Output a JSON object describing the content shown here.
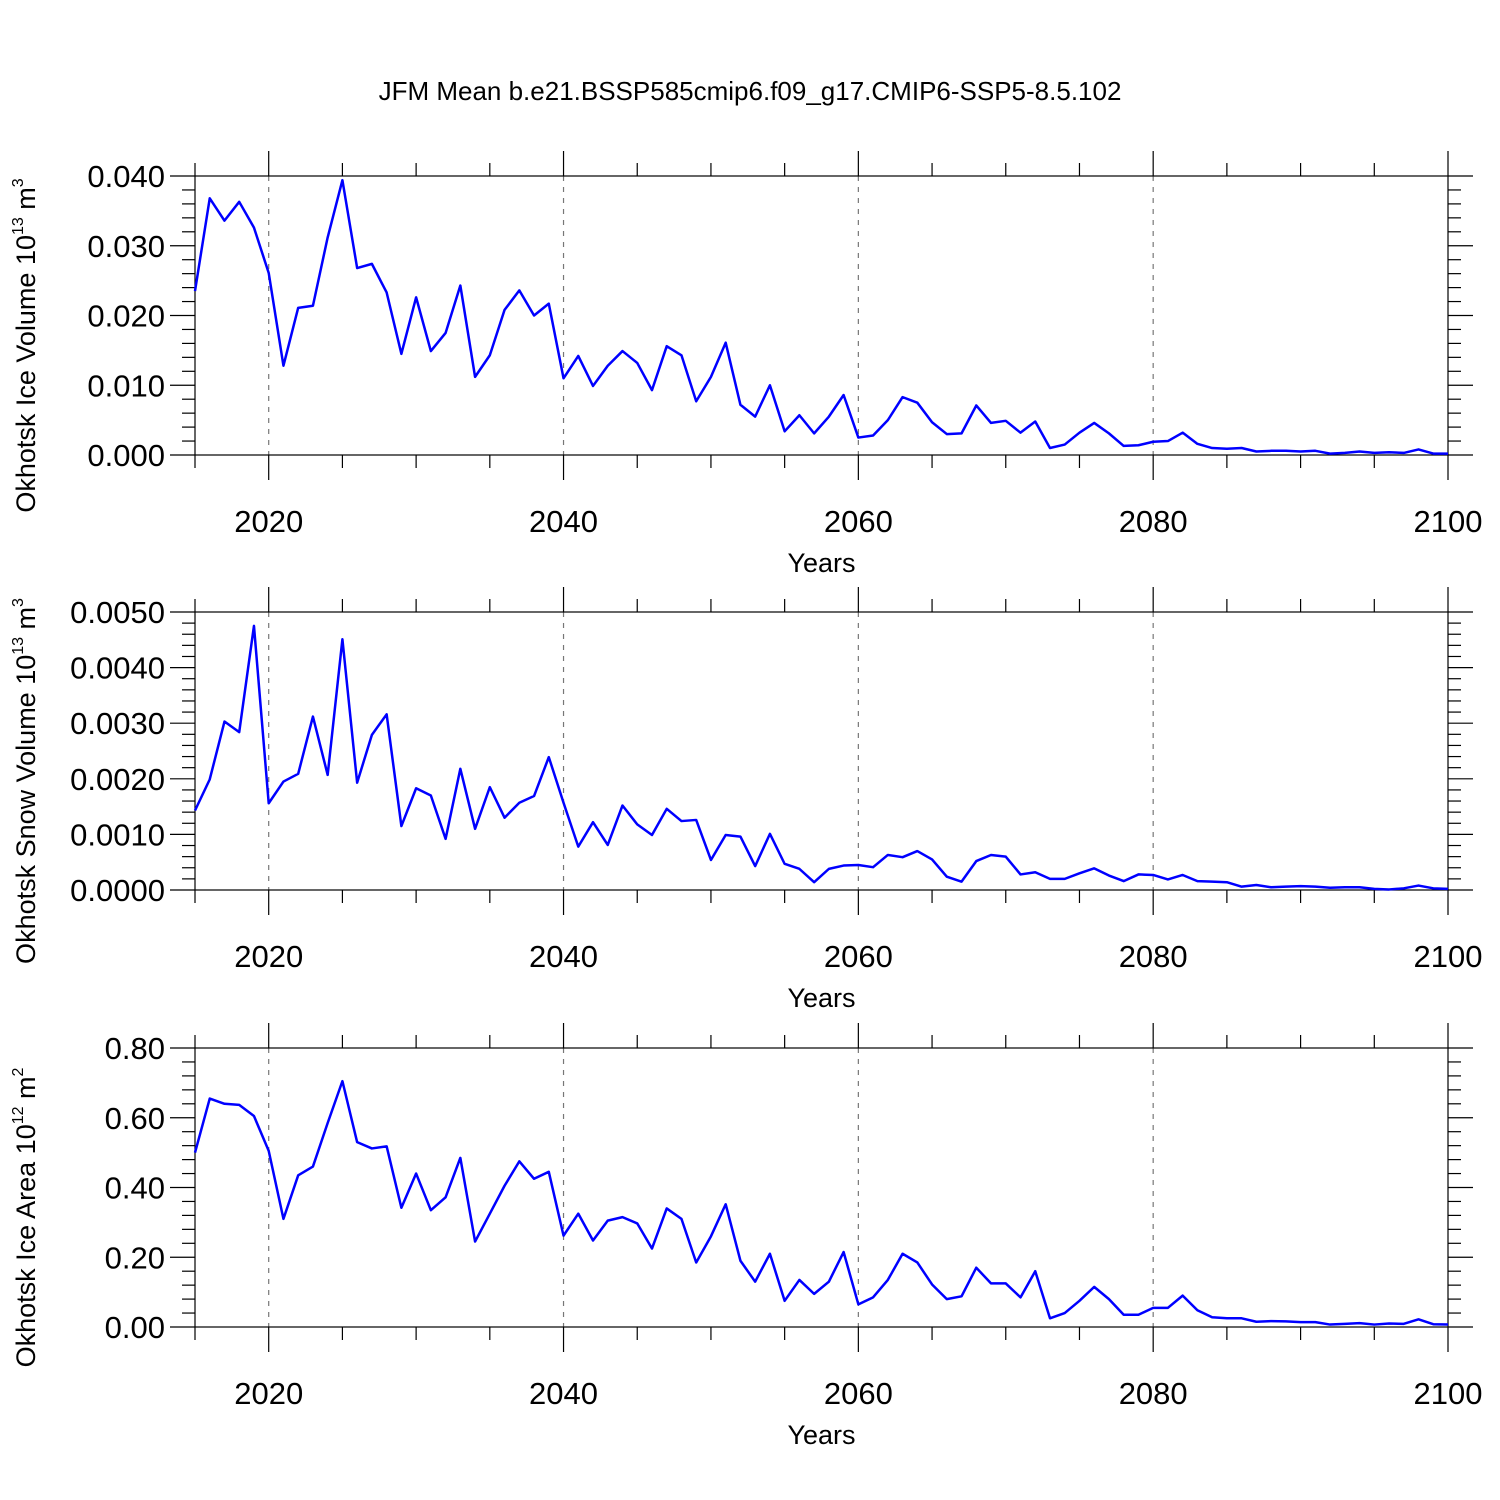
{
  "figure": {
    "title": "JFM Mean b.e21.BSSP585cmip6.f09_g17.CMIP6-SSP5-8.5.102"
  },
  "series_color": "#0000ff",
  "chart_data": [
    {
      "type": "line",
      "ylabel": "Okhotsk Ice Volume 10",
      "ylabel_exp": "13",
      "ylabel_unit": " m",
      "ylabel_unit_exp": "3",
      "xlabel": "Years",
      "xlim": [
        2015,
        2100
      ],
      "ylim": [
        0,
        0.04
      ],
      "x_ticks": [
        2020,
        2040,
        2060,
        2080,
        2100
      ],
      "x_tick_labels": [
        "2020",
        "2040",
        "2060",
        "2080",
        "2100"
      ],
      "y_ticks": [
        0,
        0.01,
        0.02,
        0.03,
        0.04
      ],
      "y_tick_labels": [
        "0.000",
        "0.010",
        "0.020",
        "0.030",
        "0.040"
      ],
      "y_minor_step": 0.002,
      "x_minor_step": 5,
      "grid": "vertical dashed at major x ticks",
      "x_start": 2015,
      "values": [
        0.0235,
        0.0368,
        0.0336,
        0.0363,
        0.0326,
        0.0261,
        0.0128,
        0.0211,
        0.0214,
        0.0312,
        0.0394,
        0.0268,
        0.0274,
        0.0233,
        0.0145,
        0.0226,
        0.0149,
        0.0175,
        0.0243,
        0.0112,
        0.0143,
        0.0208,
        0.0236,
        0.02,
        0.0217,
        0.011,
        0.0142,
        0.0099,
        0.0128,
        0.0149,
        0.0132,
        0.0093,
        0.0156,
        0.0143,
        0.0077,
        0.0112,
        0.0161,
        0.0072,
        0.0055,
        0.01,
        0.0034,
        0.0057,
        0.0031,
        0.0055,
        0.0086,
        0.0025,
        0.0028,
        0.005,
        0.0083,
        0.0075,
        0.0047,
        0.003,
        0.0031,
        0.0071,
        0.0046,
        0.0049,
        0.0032,
        0.0048,
        0.001,
        0.0015,
        0.0032,
        0.0046,
        0.0031,
        0.0013,
        0.0014,
        0.0019,
        0.002,
        0.0032,
        0.0016,
        0.001,
        0.0009,
        0.001,
        0.0005,
        0.0006,
        0.0006,
        0.0005,
        0.0006,
        0.0002,
        0.0003,
        0.0005,
        0.0003,
        0.0004,
        0.0003,
        0.0008,
        0.0002,
        0.0002
      ]
    },
    {
      "type": "line",
      "ylabel": "Okhotsk Snow Volume 10",
      "ylabel_exp": "13",
      "ylabel_unit": " m",
      "ylabel_unit_exp": "3",
      "xlabel": "Years",
      "xlim": [
        2015,
        2100
      ],
      "ylim": [
        0,
        0.005
      ],
      "x_ticks": [
        2020,
        2040,
        2060,
        2080,
        2100
      ],
      "x_tick_labels": [
        "2020",
        "2040",
        "2060",
        "2080",
        "2100"
      ],
      "y_ticks": [
        0,
        0.001,
        0.002,
        0.003,
        0.004,
        0.005
      ],
      "y_tick_labels": [
        "0.0000",
        "0.0010",
        "0.0020",
        "0.0030",
        "0.0040",
        "0.0050"
      ],
      "y_minor_step": 0.0002,
      "x_minor_step": 5,
      "grid": "vertical dashed at major x ticks",
      "x_start": 2015,
      "values": [
        0.00143,
        0.00199,
        0.00303,
        0.00284,
        0.00475,
        0.00156,
        0.00195,
        0.00209,
        0.00312,
        0.00207,
        0.00451,
        0.00193,
        0.00279,
        0.00316,
        0.00115,
        0.00183,
        0.0017,
        0.00092,
        0.00218,
        0.0011,
        0.00185,
        0.0013,
        0.00157,
        0.00169,
        0.00239,
        0.00157,
        0.00078,
        0.00122,
        0.00081,
        0.00152,
        0.00118,
        0.00099,
        0.00146,
        0.00124,
        0.00126,
        0.00054,
        0.00099,
        0.00096,
        0.00043,
        0.00101,
        0.00047,
        0.00038,
        0.00014,
        0.00038,
        0.00044,
        0.00045,
        0.00041,
        0.00063,
        0.00059,
        0.0007,
        0.00055,
        0.00024,
        0.00015,
        0.00052,
        0.00063,
        0.0006,
        0.00028,
        0.00032,
        0.0002,
        0.0002,
        0.0003,
        0.00039,
        0.00026,
        0.00016,
        0.00028,
        0.00027,
        0.00019,
        0.00027,
        0.00016,
        0.00015,
        0.00014,
        6e-05,
        9e-05,
        5e-05,
        6e-05,
        7e-05,
        6e-05,
        4e-05,
        5e-05,
        5e-05,
        2e-05,
        1e-05,
        3e-05,
        8e-05,
        3e-05,
        2e-05
      ]
    },
    {
      "type": "line",
      "ylabel": "Okhotsk Ice Area 10",
      "ylabel_exp": "12",
      "ylabel_unit": " m",
      "ylabel_unit_exp": "2",
      "xlabel": "Years",
      "xlim": [
        2015,
        2100
      ],
      "ylim": [
        0,
        0.8
      ],
      "x_ticks": [
        2020,
        2040,
        2060,
        2080,
        2100
      ],
      "x_tick_labels": [
        "2020",
        "2040",
        "2060",
        "2080",
        "2100"
      ],
      "y_ticks": [
        0,
        0.2,
        0.4,
        0.6,
        0.8
      ],
      "y_tick_labels": [
        "0.00",
        "0.20",
        "0.40",
        "0.60",
        "0.80"
      ],
      "y_minor_step": 0.04,
      "x_minor_step": 5,
      "grid": "vertical dashed at major x ticks",
      "x_start": 2015,
      "values": [
        0.5,
        0.655,
        0.64,
        0.637,
        0.605,
        0.505,
        0.31,
        0.435,
        0.46,
        0.585,
        0.705,
        0.53,
        0.512,
        0.518,
        0.342,
        0.44,
        0.335,
        0.372,
        0.485,
        0.245,
        0.325,
        0.405,
        0.475,
        0.425,
        0.445,
        0.262,
        0.325,
        0.248,
        0.305,
        0.315,
        0.297,
        0.225,
        0.34,
        0.31,
        0.185,
        0.26,
        0.352,
        0.19,
        0.13,
        0.21,
        0.075,
        0.135,
        0.095,
        0.13,
        0.215,
        0.065,
        0.085,
        0.135,
        0.21,
        0.185,
        0.122,
        0.08,
        0.088,
        0.17,
        0.125,
        0.125,
        0.085,
        0.16,
        0.025,
        0.04,
        0.075,
        0.115,
        0.08,
        0.035,
        0.035,
        0.055,
        0.055,
        0.09,
        0.048,
        0.028,
        0.025,
        0.025,
        0.015,
        0.017,
        0.016,
        0.014,
        0.014,
        0.007,
        0.009,
        0.011,
        0.007,
        0.01,
        0.009,
        0.022,
        0.008,
        0.007
      ]
    }
  ]
}
